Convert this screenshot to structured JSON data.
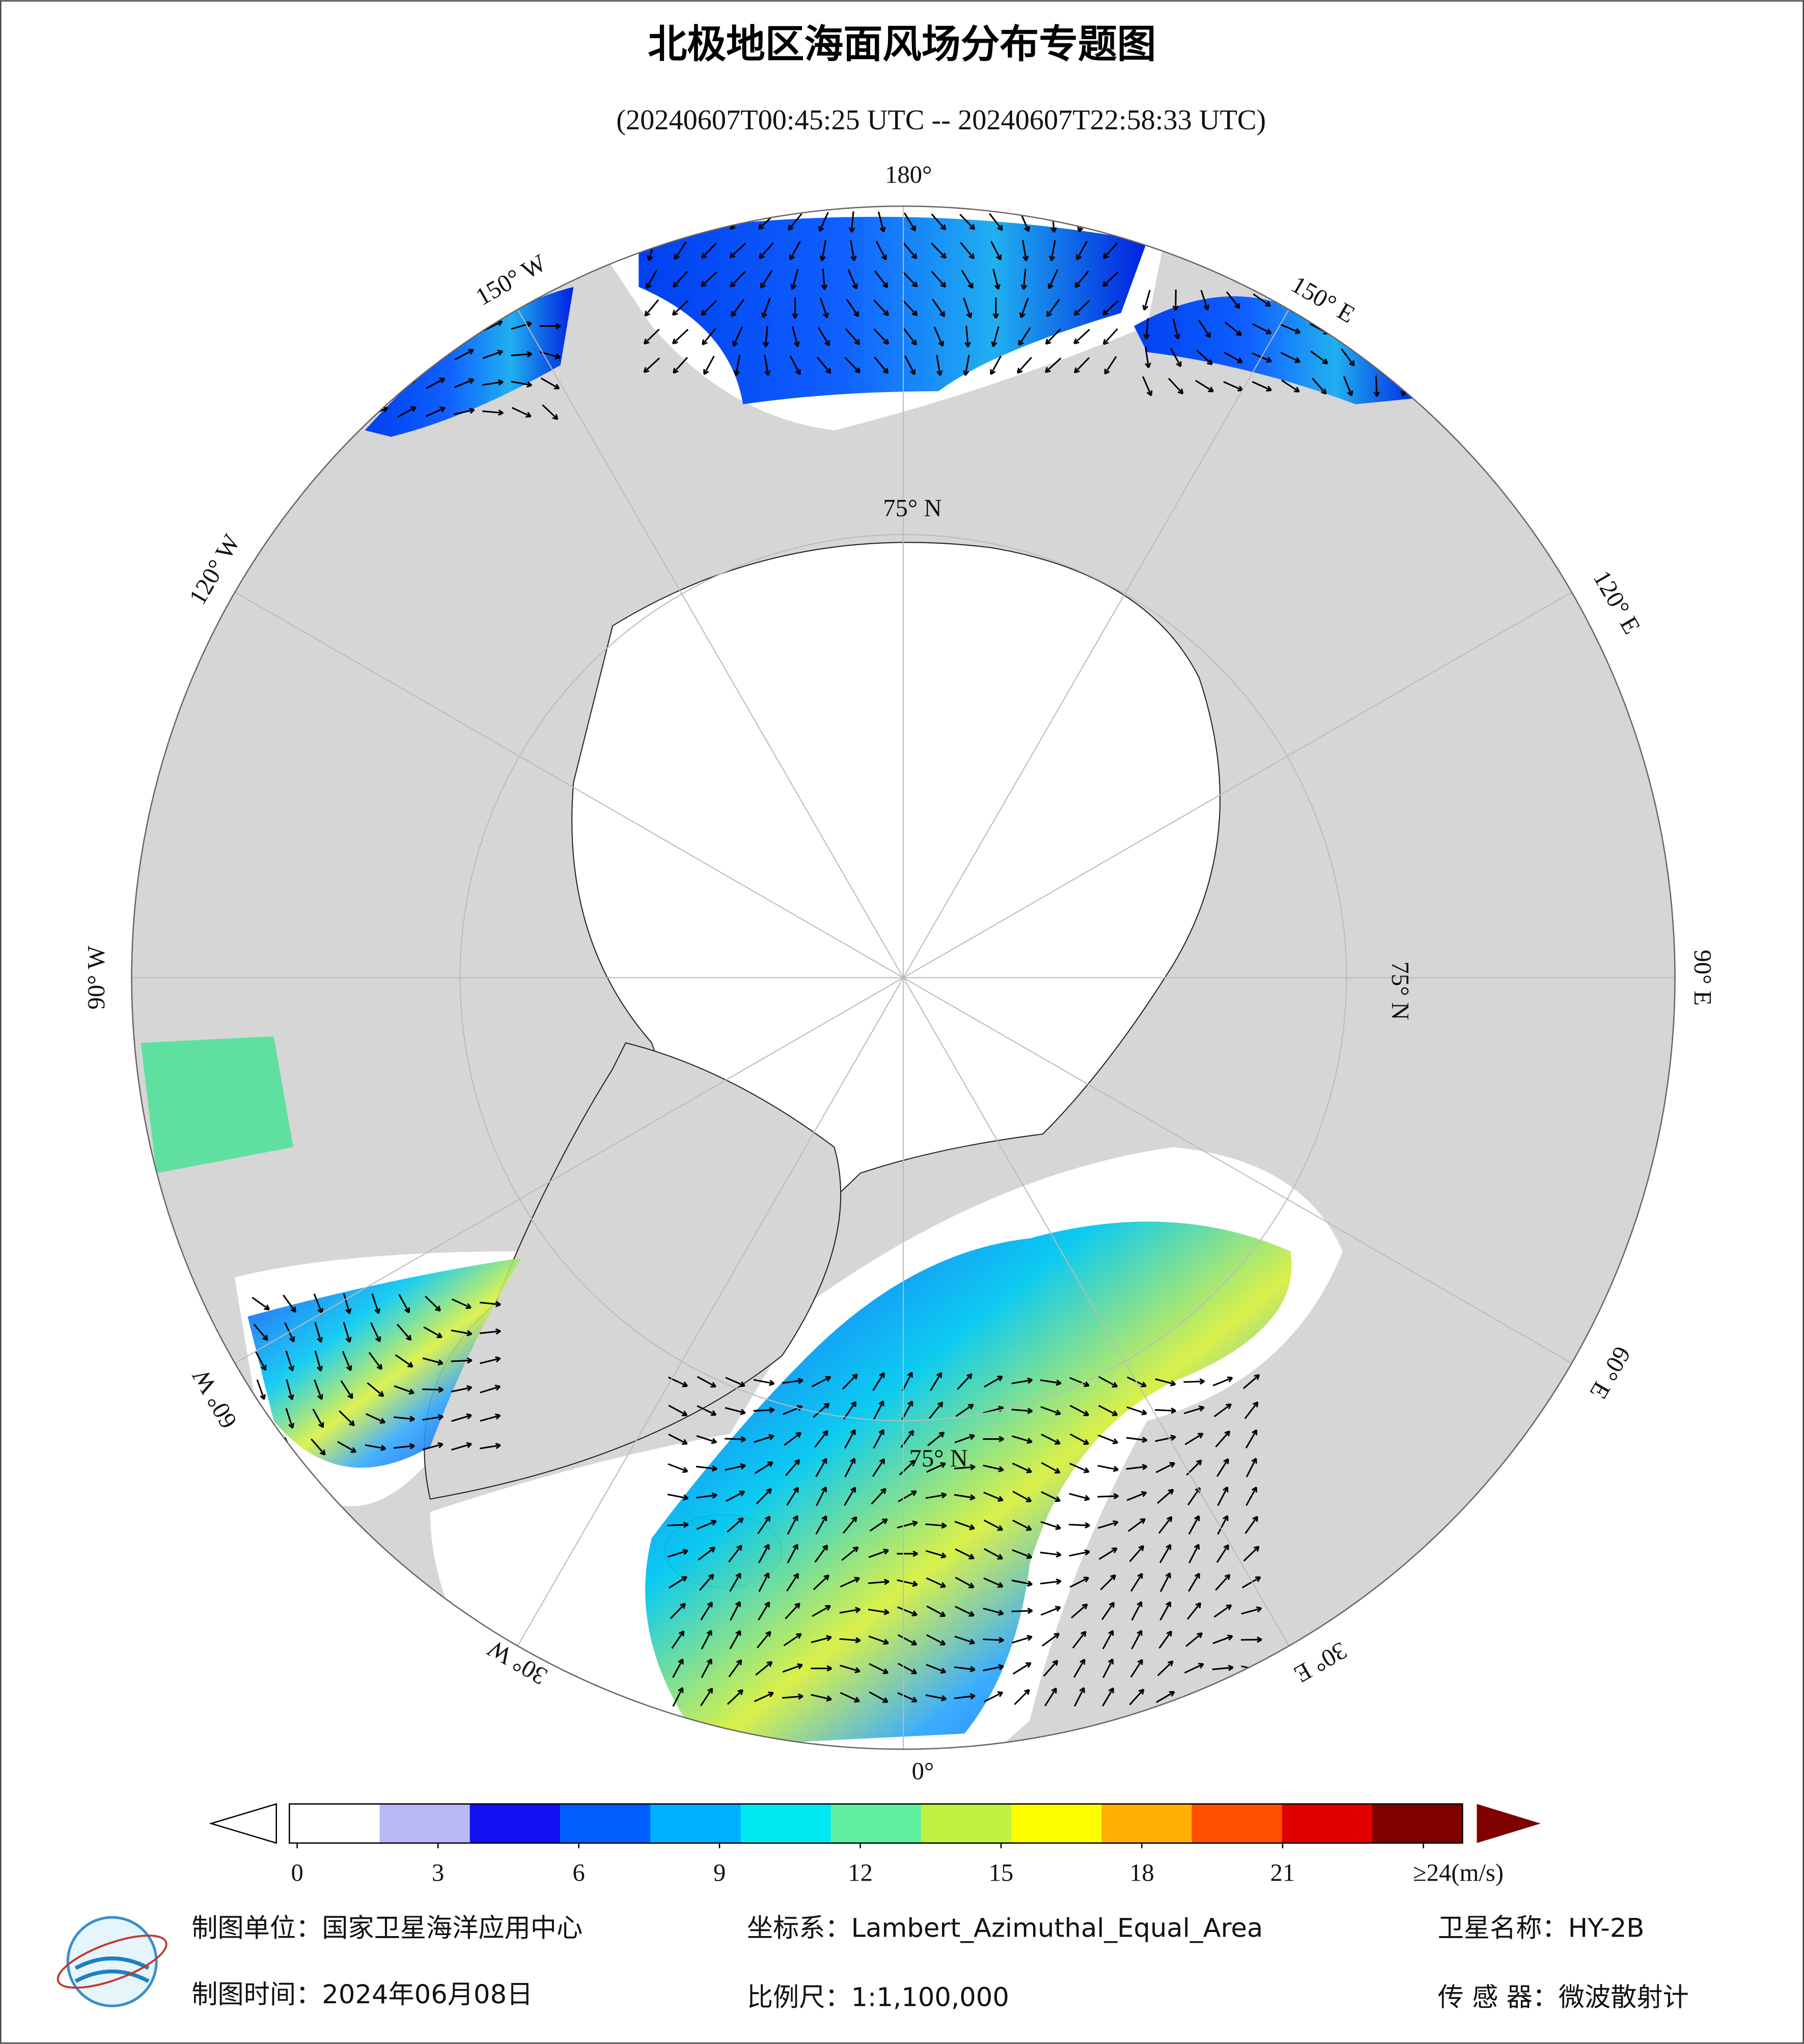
{
  "title": "北极地区海面风场分布专题图",
  "subtitle": "(20240607T00:45:25 UTC -- 20240607T22:58:33 UTC)",
  "map": {
    "labels": [
      "180°",
      "150° E",
      "120° E",
      "90° E",
      "60° E",
      "30° E",
      "0°",
      "30° W",
      "60° W",
      "90° W",
      "120° W",
      "150° W",
      "75° N",
      "75° N",
      "75° N"
    ]
  },
  "colorbar": {
    "range": [
      0,
      24
    ],
    "ticks": [
      0,
      3,
      6,
      9,
      12,
      15,
      18,
      21,
      {
        "value": 24,
        "label": "≥24(m/s)"
      }
    ],
    "colors": [
      "#ffffff",
      "#b8b8f5",
      "#1010f0",
      "#0060ff",
      "#00b0ff",
      "#00e8f0",
      "#60f0a0",
      "#c0f040",
      "#ffff00",
      "#ffb000",
      "#ff5000",
      "#e00000",
      "#800000"
    ]
  },
  "footer": {
    "unit": "制图单位：国家卫星海洋应用中心",
    "crs": "坐标系：Lambert_Azimuthal_Equal_Area",
    "satellite": "卫星名称：HY-2B",
    "date": "制图时间：2024年06月08日",
    "scale": "比例尺：1:1,100,000",
    "sensor": "传 感 器：微波散射计"
  }
}
